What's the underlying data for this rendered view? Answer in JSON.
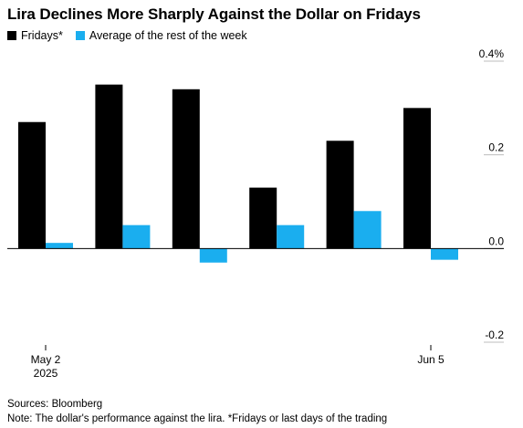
{
  "chart_data": {
    "type": "bar",
    "title": "Lira Declines More Sharply Against the Dollar on Fridays",
    "categories": [
      "May 2 2025",
      "",
      "",
      "",
      "",
      "Jun 5"
    ],
    "x_tick_labels": [
      {
        "index": 0,
        "lines": [
          "May 2",
          "2025"
        ]
      },
      {
        "index": 5,
        "lines": [
          "Jun 5"
        ]
      }
    ],
    "series": [
      {
        "name": "Fridays*",
        "color": "#000000",
        "values": [
          0.27,
          0.35,
          0.34,
          0.13,
          0.23,
          0.3
        ]
      },
      {
        "name": "Average of the rest of the week",
        "color": "#1aaeef",
        "values": [
          0.012,
          0.05,
          -0.03,
          0.05,
          0.08,
          -0.024
        ]
      }
    ],
    "ylim": [
      -0.2,
      0.4
    ],
    "yticks": [
      0.4,
      0.2,
      0.0,
      -0.2
    ],
    "ytick_labels": [
      "0.4%",
      "0.2",
      "0.0",
      "-0.2"
    ],
    "y_axis_side": "right",
    "legend_position": "top-left",
    "grid": false,
    "xlabel": "",
    "ylabel": ""
  },
  "footer": {
    "sources": "Sources: Bloomberg",
    "note": "Note: The dollar's performance against the lira. *Fridays or last days of the trading"
  }
}
